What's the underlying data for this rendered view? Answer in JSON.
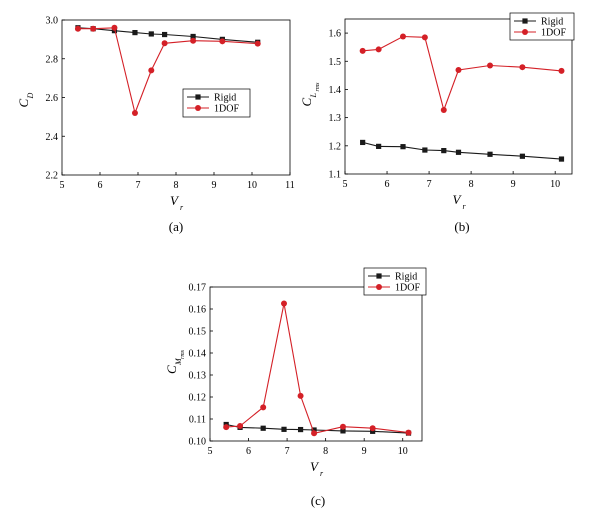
{
  "colors": {
    "rigid": "#1a1a1a",
    "dof": "#d42027"
  },
  "chart_data": [
    {
      "panel": "a",
      "type": "line",
      "caption": "(a)",
      "xlabel": {
        "main": "V",
        "sub": "r"
      },
      "ylabel": {
        "main": "C",
        "sub": "D"
      },
      "xlim": [
        5,
        11
      ],
      "ylim": [
        2.2,
        3.0
      ],
      "xticks": [
        5,
        6,
        7,
        8,
        9,
        10,
        11
      ],
      "yticks": [
        2.2,
        2.4,
        2.6,
        2.8,
        3.0
      ],
      "ytick_labels": [
        "2.2",
        "2.4",
        "2.6",
        "2.8",
        "3.0"
      ],
      "legend": {
        "position": "center-right",
        "entries": [
          "Rigid",
          "1DOF"
        ]
      },
      "series": [
        {
          "name": "Rigid",
          "marker": "square",
          "x": [
            5.42,
            5.82,
            6.38,
            6.92,
            7.35,
            7.7,
            8.45,
            9.22,
            10.15
          ],
          "y": [
            2.96,
            2.955,
            2.945,
            2.935,
            2.928,
            2.925,
            2.915,
            2.9,
            2.885
          ]
        },
        {
          "name": "1DOF",
          "marker": "circle",
          "x": [
            5.42,
            5.82,
            6.38,
            6.92,
            7.35,
            7.7,
            8.45,
            9.22,
            10.15
          ],
          "y": [
            2.955,
            2.955,
            2.96,
            2.52,
            2.74,
            2.88,
            2.893,
            2.89,
            2.878
          ]
        }
      ]
    },
    {
      "panel": "b",
      "type": "line",
      "caption": "(b)",
      "xlabel": {
        "main": "V",
        "sub": "r"
      },
      "ylabel": {
        "main": "C",
        "sub": "L",
        "subsub": "rms"
      },
      "xlim": [
        5,
        10.4
      ],
      "ylim": [
        1.1,
        1.65
      ],
      "xticks": [
        5,
        6,
        7,
        8,
        9,
        10
      ],
      "yticks": [
        1.1,
        1.2,
        1.3,
        1.4,
        1.5,
        1.6
      ],
      "ytick_labels": [
        "1.1",
        "1.2",
        "1.3",
        "1.4",
        "1.5",
        "1.6"
      ],
      "legend": {
        "position": "top-right",
        "entries": [
          "Rigid",
          "1DOF"
        ]
      },
      "series": [
        {
          "name": "Rigid",
          "marker": "square",
          "x": [
            5.42,
            5.8,
            6.38,
            6.9,
            7.35,
            7.7,
            8.45,
            9.22,
            10.15
          ],
          "y": [
            1.212,
            1.198,
            1.197,
            1.185,
            1.183,
            1.177,
            1.17,
            1.163,
            1.153
          ]
        },
        {
          "name": "1DOF",
          "marker": "circle",
          "x": [
            5.42,
            5.8,
            6.38,
            6.9,
            7.35,
            7.7,
            8.45,
            9.22,
            10.15
          ],
          "y": [
            1.537,
            1.542,
            1.588,
            1.585,
            1.327,
            1.469,
            1.485,
            1.479,
            1.466
          ]
        }
      ]
    },
    {
      "panel": "c",
      "type": "line",
      "caption": "(c)",
      "xlabel": {
        "main": "V",
        "sub": "r"
      },
      "ylabel": {
        "main": "C",
        "sub": "M",
        "subsub": "rms"
      },
      "xlim": [
        5,
        10.5
      ],
      "ylim": [
        0.1,
        0.17
      ],
      "xticks": [
        5,
        6,
        7,
        8,
        9,
        10
      ],
      "yticks": [
        0.1,
        0.11,
        0.12,
        0.13,
        0.14,
        0.15,
        0.16,
        0.17
      ],
      "ytick_labels": [
        "0.10",
        "0.11",
        "0.12",
        "0.13",
        "0.14",
        "0.15",
        "0.16",
        "0.17"
      ],
      "legend": {
        "position": "top-right",
        "entries": [
          "Rigid",
          "1DOF"
        ]
      },
      "series": [
        {
          "name": "Rigid",
          "marker": "square",
          "x": [
            5.42,
            5.78,
            6.38,
            6.92,
            7.35,
            7.7,
            8.45,
            9.22,
            10.15
          ],
          "y": [
            0.1075,
            0.1062,
            0.1058,
            0.1053,
            0.1052,
            0.105,
            0.1046,
            0.1044,
            0.1036
          ]
        },
        {
          "name": "1DOF",
          "marker": "circle",
          "x": [
            5.42,
            5.78,
            6.38,
            6.92,
            7.35,
            7.7,
            8.45,
            9.22,
            10.15
          ],
          "y": [
            0.1063,
            0.1068,
            0.1153,
            0.1625,
            0.1205,
            0.1035,
            0.1065,
            0.1058,
            0.1038
          ]
        }
      ]
    }
  ]
}
